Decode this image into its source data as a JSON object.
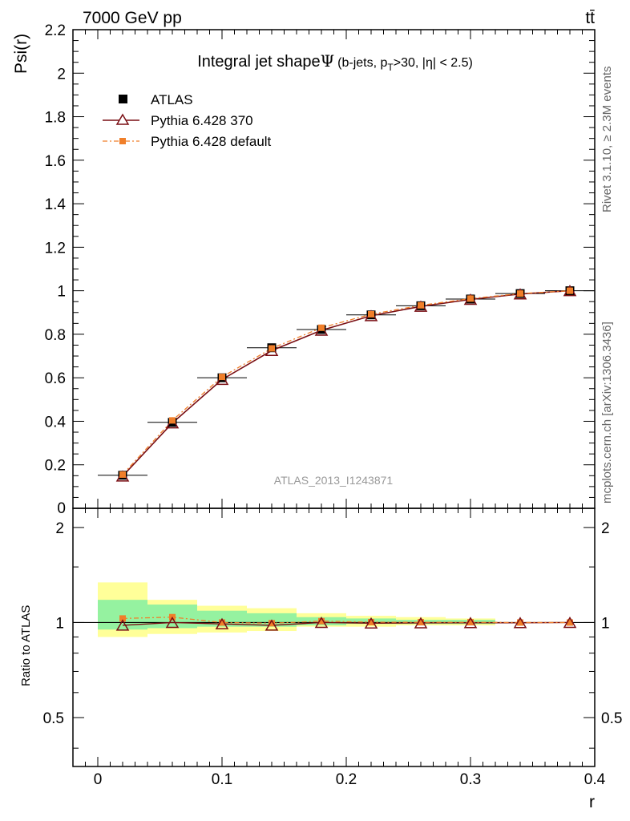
{
  "header": {
    "energy_label": "7000 GeV pp",
    "process_label": "tt̄"
  },
  "side_labels": {
    "rivet": "Rivet 3.1.10, ≥ 2.3M events",
    "mcplots": "mcplots.cern.ch [arXiv:1306.3436]"
  },
  "watermark": "ATLAS_2013_I1243871",
  "colors": {
    "atlas": "#000000",
    "p370": "#7a0f14",
    "pdef": "#f07f2a",
    "band_inner": "#95f2a0",
    "band_outer": "#ffff99"
  },
  "chart_data": [
    {
      "type": "line",
      "title_main": "Integral jet shape",
      "title_symbol": "Ψ",
      "title_detail": "(b-jets, p",
      "title_sub": "T",
      "title_rest": ">30, |η| < 2.5)",
      "ylabel": "Psi(r)",
      "xlim": [
        -0.02,
        0.4
      ],
      "ylim": [
        0,
        2.2
      ],
      "yticks": [
        0.2,
        0.4,
        0.6,
        0.8,
        1,
        1.2,
        1.4,
        1.6,
        1.8,
        2,
        2.2
      ],
      "ytick_labels": [
        "0.2",
        "0.4",
        "0.6",
        "0.8",
        "1",
        "1.2",
        "1.4",
        "1.6",
        "1.8",
        "2",
        "2.2"
      ],
      "y_bottom_label": "0",
      "legend_position": "top-left",
      "x": [
        0.02,
        0.06,
        0.1,
        0.14,
        0.18,
        0.22,
        0.26,
        0.3,
        0.34,
        0.38
      ],
      "series": [
        {
          "name": "ATLAS",
          "marker": "square",
          "color": "#000000",
          "values": [
            0.152,
            0.395,
            0.6,
            0.738,
            0.822,
            0.889,
            0.931,
            0.962,
            0.987,
            1.0
          ]
        },
        {
          "name": "Pythia 6.428 370",
          "marker": "triangle",
          "color": "#7a0f14",
          "values": [
            0.148,
            0.392,
            0.592,
            0.725,
            0.818,
            0.885,
            0.928,
            0.96,
            0.985,
            1.0
          ]
        },
        {
          "name": "Pythia 6.428 default",
          "marker": "small-square",
          "color": "#f07f2a",
          "values": [
            0.155,
            0.404,
            0.604,
            0.735,
            0.83,
            0.892,
            0.933,
            0.964,
            0.987,
            1.0
          ]
        }
      ]
    },
    {
      "type": "line",
      "ylabel": "Ratio to ATLAS",
      "xlabel": "r",
      "xlim": [
        -0.02,
        0.4
      ],
      "ylim": [
        0.35,
        2.3
      ],
      "y_scale": "log",
      "yticks": [
        0.5,
        1,
        2
      ],
      "ytick_labels": [
        "0.5",
        "1",
        "2"
      ],
      "xticks": [
        0,
        0.1,
        0.2,
        0.3,
        0.4
      ],
      "xtick_labels": [
        "0",
        "0.1",
        "0.2",
        "0.3",
        "0.4"
      ],
      "bin_edges": [
        0,
        0.04,
        0.08,
        0.12,
        0.16,
        0.2,
        0.24,
        0.28,
        0.32,
        0.36,
        0.4
      ],
      "band_inner": [
        [
          0.95,
          1.18
        ],
        [
          0.96,
          1.14
        ],
        [
          0.97,
          1.09
        ],
        [
          0.97,
          1.07
        ],
        [
          0.98,
          1.04
        ],
        [
          0.99,
          1.03
        ],
        [
          0.99,
          1.02
        ],
        [
          0.99,
          1.02
        ],
        [
          1.0,
          1.0
        ],
        [
          1.0,
          1.0
        ]
      ],
      "band_outer": [
        [
          0.9,
          1.34
        ],
        [
          0.92,
          1.18
        ],
        [
          0.93,
          1.13
        ],
        [
          0.94,
          1.11
        ],
        [
          0.97,
          1.07
        ],
        [
          0.97,
          1.05
        ],
        [
          0.98,
          1.04
        ],
        [
          0.98,
          1.03
        ],
        [
          1.0,
          1.0
        ],
        [
          1.0,
          1.0
        ]
      ],
      "x": [
        0.02,
        0.06,
        0.1,
        0.14,
        0.18,
        0.22,
        0.26,
        0.3,
        0.34,
        0.38
      ],
      "series": [
        {
          "name": "Pythia 6.428 370",
          "color": "#7a0f14",
          "values": [
            0.98,
            1.0,
            0.99,
            0.98,
            1.0,
            0.995,
            0.997,
            0.998,
            0.998,
            1.0
          ]
        },
        {
          "name": "Pythia 6.428 default",
          "color": "#f07f2a",
          "values": [
            1.03,
            1.04,
            1.0,
            0.995,
            1.01,
            1.003,
            1.002,
            1.002,
            1.0,
            1.0
          ]
        }
      ]
    }
  ]
}
